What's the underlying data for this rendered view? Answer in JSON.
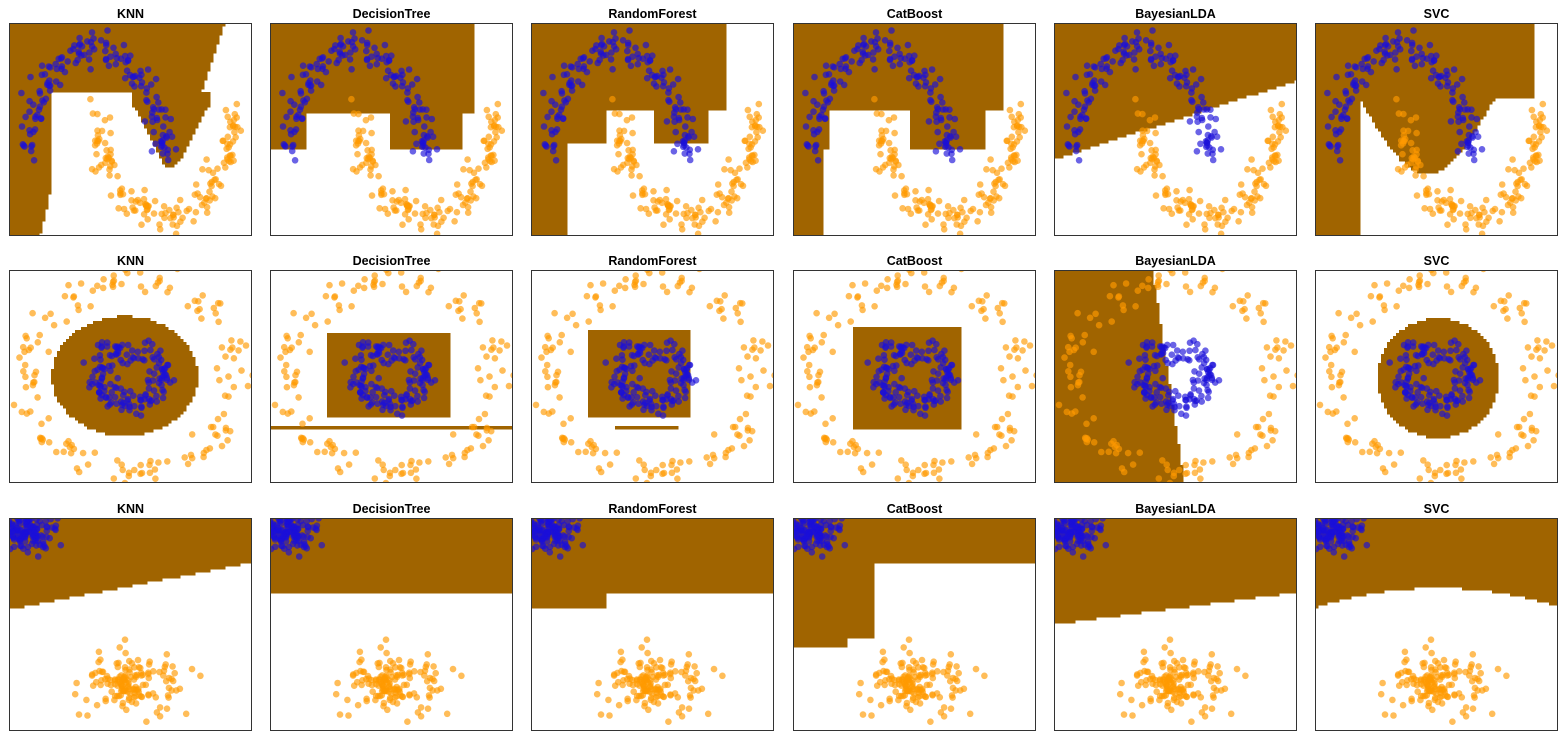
{
  "figure": {
    "background": "#ffffff",
    "colors": {
      "region_fill": "#a06400",
      "class_a_points": "#1a10d8",
      "class_b_points": "#ff9a00",
      "frame": "#333333"
    }
  },
  "chart_data": [
    {
      "type": "scatter",
      "title": "KNN",
      "dataset": "moons",
      "row": 0,
      "col": 0,
      "axes_visible": false,
      "grid": false,
      "legend": "none"
    },
    {
      "type": "scatter",
      "title": "DecisionTree",
      "dataset": "moons",
      "row": 0,
      "col": 1,
      "axes_visible": false,
      "grid": false,
      "legend": "none"
    },
    {
      "type": "scatter",
      "title": "RandomForest",
      "dataset": "moons",
      "row": 0,
      "col": 2,
      "axes_visible": false,
      "grid": false,
      "legend": "none"
    },
    {
      "type": "scatter",
      "title": "CatBoost",
      "dataset": "moons",
      "row": 0,
      "col": 3,
      "axes_visible": false,
      "grid": false,
      "legend": "none"
    },
    {
      "type": "scatter",
      "title": "BayesianLDA",
      "dataset": "moons",
      "row": 0,
      "col": 4,
      "axes_visible": false,
      "grid": false,
      "legend": "none"
    },
    {
      "type": "scatter",
      "title": "SVC",
      "dataset": "moons",
      "row": 0,
      "col": 5,
      "axes_visible": false,
      "grid": false,
      "legend": "none"
    },
    {
      "type": "scatter",
      "title": "KNN",
      "dataset": "circles",
      "row": 1,
      "col": 0,
      "axes_visible": false,
      "grid": false,
      "legend": "none"
    },
    {
      "type": "scatter",
      "title": "DecisionTree",
      "dataset": "circles",
      "row": 1,
      "col": 1,
      "axes_visible": false,
      "grid": false,
      "legend": "none"
    },
    {
      "type": "scatter",
      "title": "RandomForest",
      "dataset": "circles",
      "row": 1,
      "col": 2,
      "axes_visible": false,
      "grid": false,
      "legend": "none"
    },
    {
      "type": "scatter",
      "title": "CatBoost",
      "dataset": "circles",
      "row": 1,
      "col": 3,
      "axes_visible": false,
      "grid": false,
      "legend": "none"
    },
    {
      "type": "scatter",
      "title": "BayesianLDA",
      "dataset": "circles",
      "row": 1,
      "col": 4,
      "axes_visible": false,
      "grid": false,
      "legend": "none"
    },
    {
      "type": "scatter",
      "title": "SVC",
      "dataset": "circles",
      "row": 1,
      "col": 5,
      "axes_visible": false,
      "grid": false,
      "legend": "none"
    },
    {
      "type": "scatter",
      "title": "KNN",
      "dataset": "blobs",
      "row": 2,
      "col": 0,
      "axes_visible": false,
      "grid": false,
      "legend": "none"
    },
    {
      "type": "scatter",
      "title": "DecisionTree",
      "dataset": "blobs",
      "row": 2,
      "col": 1,
      "axes_visible": false,
      "grid": false,
      "legend": "none"
    },
    {
      "type": "scatter",
      "title": "RandomForest",
      "dataset": "blobs",
      "row": 2,
      "col": 2,
      "axes_visible": false,
      "grid": false,
      "legend": "none"
    },
    {
      "type": "scatter",
      "title": "CatBoost",
      "dataset": "blobs",
      "row": 2,
      "col": 3,
      "axes_visible": false,
      "grid": false,
      "legend": "none"
    },
    {
      "type": "scatter",
      "title": "BayesianLDA",
      "dataset": "blobs",
      "row": 2,
      "col": 4,
      "axes_visible": false,
      "grid": false,
      "legend": "none"
    },
    {
      "type": "scatter",
      "title": "SVC",
      "dataset": "blobs",
      "row": 2,
      "col": 5,
      "axes_visible": false,
      "grid": false,
      "legend": "none"
    }
  ]
}
